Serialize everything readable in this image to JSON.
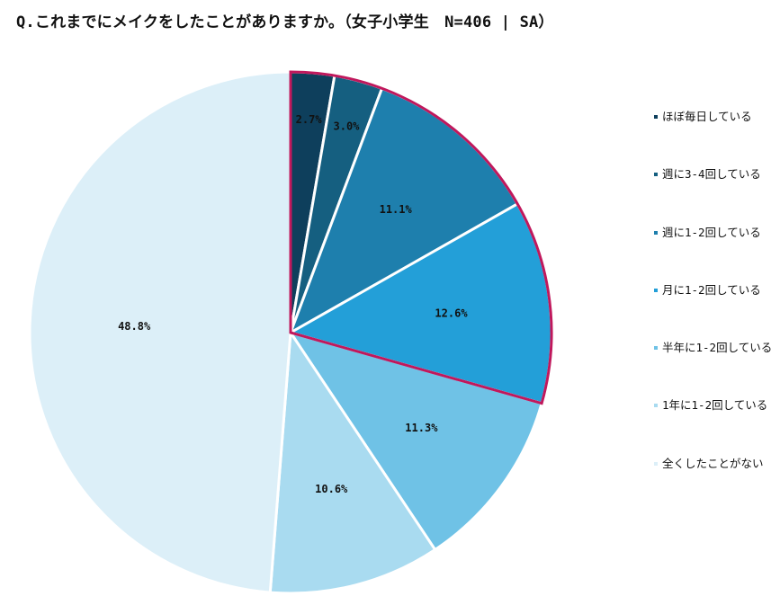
{
  "title": "Q.これまでにメイクをしたことがありますか。（女子小学生　N=406 | SA）",
  "chart_data": {
    "type": "pie",
    "title": "Q.これまでにメイクをしたことがありますか。（女子小学生　N=406 | SA）",
    "start_angle_deg": 0,
    "direction": "clockwise",
    "highlight_color": "#c0185c",
    "highlight_group": [
      "ほぼ毎日している",
      "週に3-4回している",
      "週に1-2回している",
      "月に1-2回している"
    ],
    "slices": [
      {
        "label": "ほぼ毎日している",
        "value": 2.7,
        "display": "2.7%",
        "color": "#0e3f5c"
      },
      {
        "label": "週に3-4回している",
        "value": 3.0,
        "display": "3.0%",
        "color": "#155f80"
      },
      {
        "label": "週に1-2回している",
        "value": 11.1,
        "display": "11.1%",
        "color": "#1e7fad"
      },
      {
        "label": "月に1-2回している",
        "value": 12.6,
        "display": "12.6%",
        "color": "#239fd8"
      },
      {
        "label": "半年に1-2回している",
        "value": 11.3,
        "display": "11.3%",
        "color": "#6fc2e6"
      },
      {
        "label": "1年に1-2回している",
        "value": 10.6,
        "display": "10.6%",
        "color": "#a9dbf0"
      },
      {
        "label": "全くしたことがない",
        "value": 48.8,
        "display": "48.8%",
        "color": "#dceff8"
      }
    ]
  }
}
